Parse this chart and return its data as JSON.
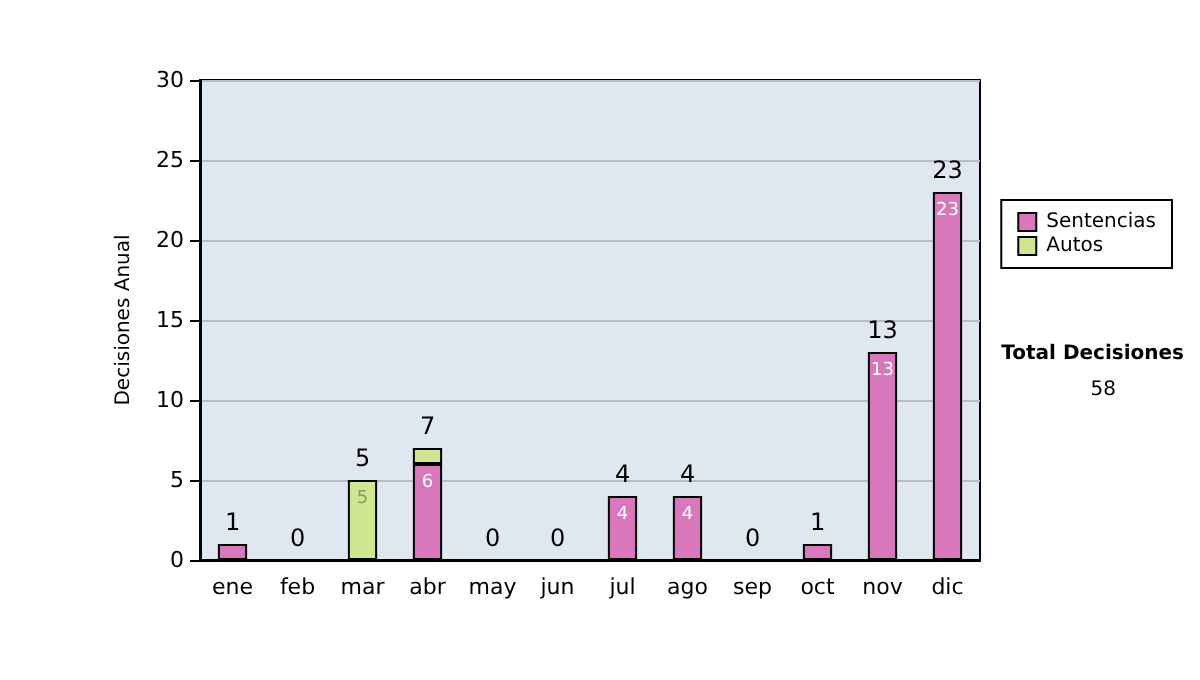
{
  "chart_data": {
    "type": "bar",
    "stacked": true,
    "ylabel": "Decisiones Anual",
    "categories": [
      "ene",
      "feb",
      "mar",
      "abr",
      "may",
      "jun",
      "jul",
      "ago",
      "sep",
      "oct",
      "nov",
      "dic"
    ],
    "series": [
      {
        "name": "Sentencias",
        "color": "#d877bb",
        "values": [
          1,
          0,
          0,
          6,
          0,
          0,
          4,
          4,
          0,
          1,
          13,
          23
        ],
        "value_labels": [
          null,
          null,
          null,
          "6",
          null,
          null,
          "4",
          "4",
          null,
          null,
          "13",
          "23"
        ]
      },
      {
        "name": "Autos",
        "color": "#cde68f",
        "values": [
          0,
          0,
          5,
          1,
          0,
          0,
          0,
          0,
          0,
          0,
          0,
          0
        ],
        "value_labels": [
          null,
          null,
          "5",
          null,
          null,
          null,
          null,
          null,
          null,
          null,
          null,
          null
        ]
      }
    ],
    "totals": [
      "1",
      "0",
      "5",
      "7",
      "0",
      "0",
      "4",
      "4",
      "0",
      "1",
      "13",
      "23"
    ],
    "ylim": [
      0,
      30
    ],
    "yticks": [
      0,
      5,
      10,
      15,
      20,
      25,
      30
    ],
    "grid": "y",
    "legend": "right",
    "annotations": [
      "Total Decisiones",
      "58"
    ]
  }
}
